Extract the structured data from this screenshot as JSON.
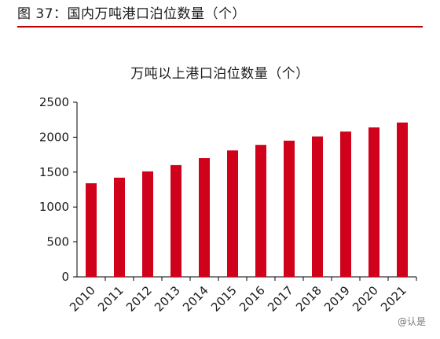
{
  "figure": {
    "caption": "图 37：国内万吨港口泊位数量（个）"
  },
  "watermark": {
    "text": "@认是"
  },
  "colors": {
    "bar": "#d0021b",
    "accent_rule": "#c00000",
    "axis": "#000000"
  },
  "chart_data": {
    "type": "bar",
    "title": "万吨以上港口泊位数量（个）",
    "categories": [
      "2010",
      "2011",
      "2012",
      "2013",
      "2014",
      "2015",
      "2016",
      "2017",
      "2018",
      "2019",
      "2020",
      "2021"
    ],
    "values": [
      1340,
      1420,
      1510,
      1600,
      1700,
      1810,
      1890,
      1950,
      2010,
      2080,
      2140,
      2210
    ],
    "ylim": [
      0,
      2500
    ],
    "yticks": [
      0,
      500,
      1000,
      1500,
      2000,
      2500
    ],
    "xlabel": "",
    "ylabel": "",
    "grid": false,
    "legend": "none"
  }
}
